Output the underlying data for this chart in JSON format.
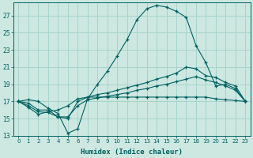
{
  "xlabel": "Humidex (Indice chaleur)",
  "background_color": "#cce8e0",
  "grid_color": "#a8d4cc",
  "line_color": "#006060",
  "x_values": [
    0,
    1,
    2,
    3,
    4,
    5,
    6,
    7,
    8,
    9,
    10,
    11,
    12,
    13,
    14,
    15,
    16,
    17,
    18,
    19,
    20,
    21,
    22,
    23
  ],
  "series1": [
    17.0,
    17.2,
    17.0,
    16.2,
    15.6,
    13.3,
    13.8,
    17.3,
    19.0,
    20.5,
    22.3,
    24.2,
    26.5,
    27.8,
    28.2,
    28.0,
    27.5,
    26.8,
    23.5,
    21.5,
    18.8,
    19.0,
    18.5,
    17.0
  ],
  "series2": [
    17.0,
    16.8,
    16.0,
    16.0,
    15.2,
    15.0,
    17.0,
    17.5,
    17.8,
    18.0,
    18.3,
    18.6,
    18.9,
    19.2,
    19.6,
    19.9,
    20.3,
    21.0,
    20.8,
    20.0,
    19.8,
    19.2,
    18.8,
    17.0
  ],
  "series3": [
    17.0,
    16.5,
    15.8,
    15.7,
    15.2,
    15.2,
    16.5,
    17.2,
    17.4,
    17.6,
    17.8,
    18.0,
    18.3,
    18.5,
    18.8,
    19.0,
    19.3,
    19.6,
    19.9,
    19.5,
    19.2,
    18.8,
    18.3,
    17.0
  ],
  "series4": [
    17.0,
    16.3,
    15.5,
    15.8,
    16.0,
    16.5,
    17.3,
    17.5,
    17.5,
    17.5,
    17.5,
    17.5,
    17.5,
    17.5,
    17.5,
    17.5,
    17.5,
    17.5,
    17.5,
    17.5,
    17.3,
    17.2,
    17.1,
    17.0
  ],
  "ylim": [
    13,
    28.5
  ],
  "yticks": [
    13,
    15,
    17,
    19,
    21,
    23,
    25,
    27
  ],
  "xlim": [
    -0.5,
    23.5
  ]
}
